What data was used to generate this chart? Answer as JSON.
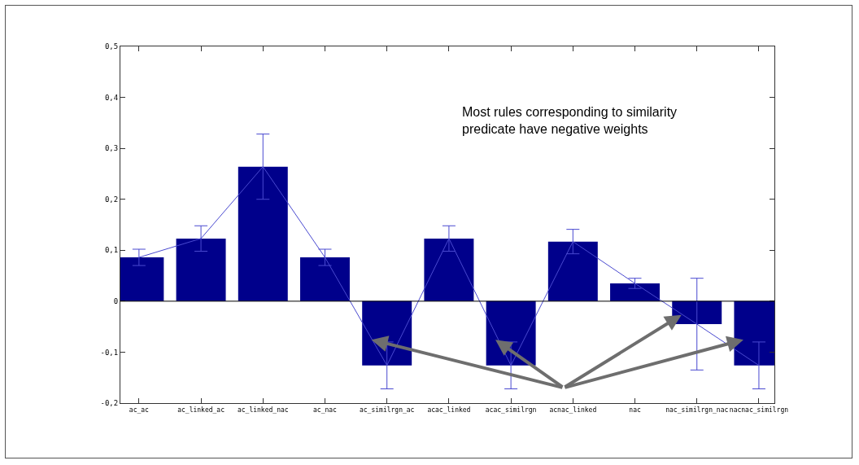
{
  "chart_data": {
    "type": "bar",
    "categories": [
      "ac_ac",
      "ac_linked_ac",
      "ac_linked_nac",
      "ac_nac",
      "ac_similrgn_ac",
      "acac_linked",
      "acac_similrgn",
      "acnac_linked",
      "nac",
      "nac_similrgn_nac",
      "nacnac_similrgn"
    ],
    "series": [
      {
        "color": "#00008b",
        "values": [
          0.086,
          0.123,
          0.264,
          0.086,
          -0.126,
          0.123,
          -0.126,
          0.117,
          0.035,
          -0.045,
          -0.126
        ]
      },
      {
        "type": "line",
        "color": "#4a4ad0",
        "values": [
          0.086,
          0.123,
          0.264,
          0.086,
          -0.126,
          0.123,
          -0.126,
          0.117,
          0.035,
          -0.045,
          -0.126
        ],
        "errors": [
          0.016,
          0.025,
          0.064,
          0.016,
          0.046,
          0.025,
          0.046,
          0.024,
          0.01,
          0.09,
          0.046
        ]
      }
    ],
    "ylim": [
      -0.2,
      0.5
    ],
    "yticks": [
      {
        "value": -0.2,
        "label": "-0,2"
      },
      {
        "value": -0.1,
        "label": "-0,1"
      },
      {
        "value": 0,
        "label": "0"
      },
      {
        "value": 0.1,
        "label": "0,1"
      },
      {
        "value": 0.2,
        "label": "0,2"
      },
      {
        "value": 0.3,
        "label": "0,3"
      },
      {
        "value": 0.4,
        "label": "0,4"
      },
      {
        "value": 0.5,
        "label": "0,5"
      }
    ],
    "annotations": [
      "Most rules corresponding to similarity predicate have negative weights"
    ],
    "ref_lines": [
      {
        "axis": "y",
        "value": 0,
        "color": "#000000"
      }
    ],
    "grid": false,
    "marker": "none",
    "line_style": "solid"
  }
}
